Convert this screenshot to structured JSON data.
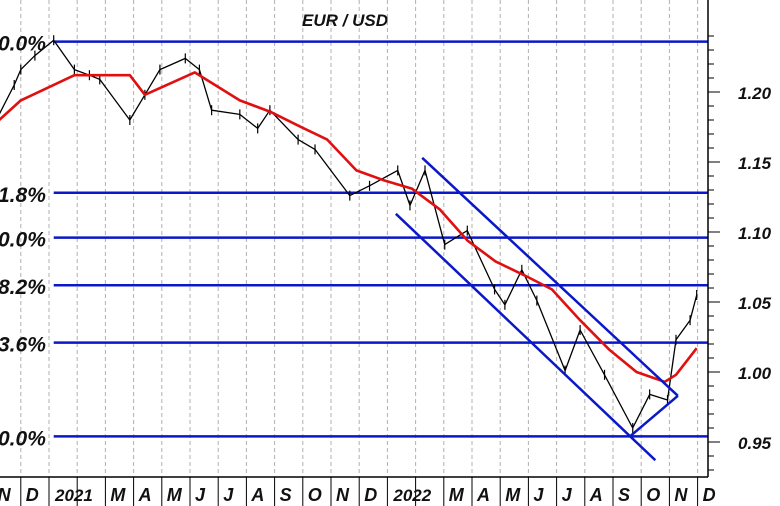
{
  "chart_data": {
    "type": "line",
    "title": "EUR / USD",
    "y_axis": {
      "position": "right",
      "ticks": [
        0.95,
        1.0,
        1.05,
        1.1,
        1.15,
        1.2
      ],
      "tick_labels": [
        "0.95",
        "1.00",
        "1.05",
        "1.10",
        "1.15",
        "1.20"
      ],
      "minor_tick_step": 0.01
    },
    "x_axis": {
      "tick_labels": [
        "N",
        "D",
        "2021",
        "M",
        "A",
        "M",
        "J",
        "J",
        "A",
        "S",
        "O",
        "N",
        "D",
        "2022",
        "M",
        "A",
        "M",
        "J",
        "J",
        "A",
        "S",
        "O",
        "N",
        "D"
      ]
    },
    "grid": "vertical dashed monthly",
    "colors": {
      "price": "#000000",
      "moving_average": "#e01010",
      "lines": "#0a18c8",
      "grid": "#b0b0b0"
    },
    "series": [
      {
        "role": "price",
        "points": [
          [
            "2020-11-08",
            1.184
          ],
          [
            "2020-11-24",
            1.205
          ],
          [
            "2020-12-01",
            1.216
          ],
          [
            "2020-12-16",
            1.226
          ],
          [
            "2021-01-06",
            1.237
          ],
          [
            "2021-01-28",
            1.216
          ],
          [
            "2021-02-14",
            1.212
          ],
          [
            "2021-02-25",
            1.209
          ],
          [
            "2021-03-27",
            1.18
          ],
          [
            "2021-04-13",
            1.198
          ],
          [
            "2021-04-29",
            1.216
          ],
          [
            "2021-05-26",
            1.224
          ],
          [
            "2021-06-11",
            1.216
          ],
          [
            "2021-06-24",
            1.187
          ],
          [
            "2021-07-24",
            1.184
          ],
          [
            "2021-08-13",
            1.174
          ],
          [
            "2021-08-26",
            1.187
          ],
          [
            "2021-09-26",
            1.166
          ],
          [
            "2021-10-14",
            1.159
          ],
          [
            "2021-11-21",
            1.126
          ],
          [
            "2021-12-12",
            1.133
          ],
          [
            "2022-01-12",
            1.144
          ],
          [
            "2022-01-25",
            1.119
          ],
          [
            "2022-02-11",
            1.144
          ],
          [
            "2022-03-02",
            1.091
          ],
          [
            "2022-03-26",
            1.101
          ],
          [
            "2022-04-25",
            1.059
          ],
          [
            "2022-05-06",
            1.048
          ],
          [
            "2022-05-24",
            1.073
          ],
          [
            "2022-06-10",
            1.051
          ],
          [
            "2022-07-10",
            1.001
          ],
          [
            "2022-07-26",
            1.03
          ],
          [
            "2022-08-22",
            0.998
          ],
          [
            "2022-09-22",
            0.96
          ],
          [
            "2022-10-10",
            0.984
          ],
          [
            "2022-10-29",
            0.98
          ],
          [
            "2022-11-08",
            1.023
          ],
          [
            "2022-11-23",
            1.037
          ],
          [
            "2022-11-30",
            1.055
          ]
        ]
      },
      {
        "role": "moving_average",
        "points": [
          [
            "2020-11-08",
            1.18
          ],
          [
            "2020-12-01",
            1.194
          ],
          [
            "2021-01-28",
            1.212
          ],
          [
            "2021-03-27",
            1.212
          ],
          [
            "2021-04-13",
            1.198
          ],
          [
            "2021-06-06",
            1.214
          ],
          [
            "2021-07-24",
            1.194
          ],
          [
            "2021-08-26",
            1.186
          ],
          [
            "2021-09-26",
            1.176
          ],
          [
            "2021-10-27",
            1.166
          ],
          [
            "2021-11-28",
            1.144
          ],
          [
            "2021-12-27",
            1.137
          ],
          [
            "2022-01-27",
            1.131
          ],
          [
            "2022-02-27",
            1.116
          ],
          [
            "2022-03-26",
            1.094
          ],
          [
            "2022-04-26",
            1.079
          ],
          [
            "2022-05-27",
            1.069
          ],
          [
            "2022-06-26",
            1.059
          ],
          [
            "2022-07-26",
            1.037
          ],
          [
            "2022-08-27",
            1.016
          ],
          [
            "2022-09-26",
            1.0
          ],
          [
            "2022-10-26",
            0.993
          ],
          [
            "2022-11-08",
            0.998
          ],
          [
            "2022-11-30",
            1.017
          ]
        ]
      }
    ],
    "fibonacci_levels": [
      {
        "label": "0.0%",
        "value": 1.236
      },
      {
        "label": "1.8%",
        "value": 1.128
      },
      {
        "label": "0.0%",
        "value": 1.096
      },
      {
        "label": "8.2%",
        "value": 1.062
      },
      {
        "label": "3.6%",
        "value": 1.021
      },
      {
        "label": "0.0%",
        "value": 0.954
      }
    ],
    "fibonacci_start": "2021-01-06",
    "trend_lines": [
      {
        "from": [
          "2022-02-08",
          1.153
        ],
        "to": [
          "2022-11-10",
          0.983
        ]
      },
      {
        "from": [
          "2022-01-10",
          1.113
        ],
        "to": [
          "2022-10-16",
          0.937
        ]
      },
      {
        "from": [
          "2022-09-19",
          0.954
        ],
        "to": [
          "2022-11-10",
          0.983
        ]
      }
    ]
  }
}
